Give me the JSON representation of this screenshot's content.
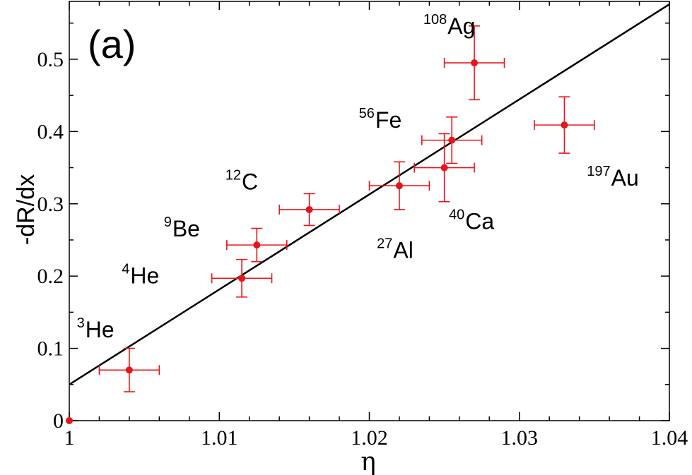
{
  "chart_data": {
    "type": "scatter",
    "title": "",
    "panel_label": "(a)",
    "xlabel": "η",
    "ylabel": "-dR/dx",
    "xlim": [
      1.0,
      1.04
    ],
    "ylim": [
      0.0,
      0.58
    ],
    "x_ticks": [
      1.0,
      1.01,
      1.02,
      1.03,
      1.04
    ],
    "x_tick_labels": [
      "1",
      "1.01",
      "1.02",
      "1.03",
      "1.04"
    ],
    "y_ticks": [
      0.0,
      0.1,
      0.2,
      0.3,
      0.4,
      0.5
    ],
    "y_tick_labels": [
      "0",
      "0.1",
      "0.2",
      "0.3",
      "0.4",
      "0.5"
    ],
    "grid": false,
    "marker_color": "#e8141b",
    "line_color": "#000000",
    "points": [
      {
        "x": 1.004,
        "y": 0.07,
        "xerr": 0.002,
        "yerr": 0.03
      },
      {
        "x": 1.0115,
        "y": 0.197,
        "xerr": 0.002,
        "yerr": 0.026
      },
      {
        "x": 1.0125,
        "y": 0.243,
        "xerr": 0.002,
        "yerr": 0.023
      },
      {
        "x": 1.016,
        "y": 0.292,
        "xerr": 0.002,
        "yerr": 0.022
      },
      {
        "x": 1.022,
        "y": 0.325,
        "xerr": 0.002,
        "yerr": 0.033
      },
      {
        "x": 1.025,
        "y": 0.35,
        "xerr": 0.002,
        "yerr": 0.047
      },
      {
        "x": 1.0255,
        "y": 0.388,
        "xerr": 0.002,
        "yerr": 0.032
      },
      {
        "x": 1.027,
        "y": 0.495,
        "xerr": 0.002,
        "yerr": 0.051
      },
      {
        "x": 1.033,
        "y": 0.409,
        "xerr": 0.002,
        "yerr": 0.039
      }
    ],
    "origin_point": {
      "x": 1.0,
      "y": 0.0
    },
    "fit_line": {
      "x": [
        1.0,
        1.04
      ],
      "y": [
        0.05,
        0.576
      ]
    },
    "annotations": [
      {
        "mass": "3",
        "element": "He",
        "x": 1.0005,
        "y": 0.115
      },
      {
        "mass": "4",
        "element": "He",
        "x": 1.0035,
        "y": 0.19
      },
      {
        "mass": "9",
        "element": "Be",
        "x": 1.0063,
        "y": 0.255
      },
      {
        "mass": "12",
        "element": "C",
        "x": 1.0104,
        "y": 0.32
      },
      {
        "mass": "56",
        "element": "Fe",
        "x": 1.0193,
        "y": 0.405
      },
      {
        "mass": "108",
        "element": "Ag",
        "x": 1.0236,
        "y": 0.535
      },
      {
        "mass": "27",
        "element": "Al",
        "x": 1.0205,
        "y": 0.225
      },
      {
        "mass": "40",
        "element": "Ca",
        "x": 1.0253,
        "y": 0.265
      },
      {
        "mass": "197",
        "element": "Au",
        "x": 1.0345,
        "y": 0.325
      }
    ]
  }
}
